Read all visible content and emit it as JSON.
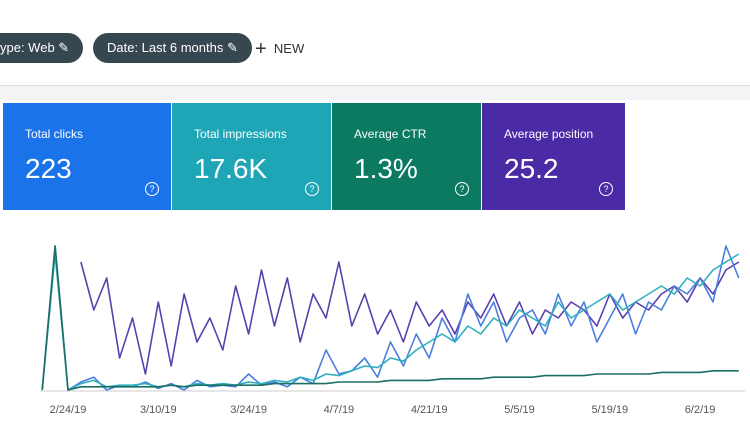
{
  "filters": [
    {
      "label": "ype: Web"
    },
    {
      "label": "Date: Last 6 months"
    }
  ],
  "new_button": "NEW",
  "metrics": [
    {
      "label": "Total clicks",
      "value": "223",
      "color": "#1a73e8"
    },
    {
      "label": "Total impressions",
      "value": "17.6K",
      "color": "#1fa6b6"
    },
    {
      "label": "Average CTR",
      "value": "1.3%",
      "color": "#0b7a60"
    },
    {
      "label": "Average position",
      "value": "25.2",
      "color": "#4a2aa5"
    }
  ],
  "chart_data": {
    "type": "line",
    "categories": [
      null,
      null,
      "2/24/19",
      null,
      null,
      null,
      null,
      null,
      null,
      "3/10/19",
      null,
      null,
      null,
      null,
      null,
      null,
      "3/24/19",
      null,
      null,
      null,
      null,
      null,
      null,
      "4/7/19",
      null,
      null,
      null,
      null,
      null,
      null,
      "4/21/19",
      null,
      null,
      null,
      null,
      null,
      null,
      "5/5/19",
      null,
      null,
      null,
      null,
      null,
      null,
      "5/19/19",
      null,
      null,
      null,
      null,
      null,
      null,
      "6/2/19",
      null,
      null,
      null
    ],
    "ylim": [
      0,
      100
    ],
    "series": [
      {
        "color": "#5b3fb0",
        "values": [
          null,
          null,
          null,
          80,
          50,
          70,
          20,
          45,
          10,
          55,
          15,
          60,
          30,
          45,
          25,
          65,
          35,
          75,
          40,
          70,
          30,
          60,
          45,
          80,
          40,
          60,
          35,
          50,
          30,
          55,
          40,
          50,
          35,
          55,
          45,
          60,
          40,
          55,
          35,
          50,
          45,
          55,
          50,
          40,
          60,
          45,
          55,
          50,
          60,
          65,
          55,
          70,
          60,
          75,
          80
        ]
      },
      {
        "color": "#4a7fe0",
        "values": [
          0,
          90,
          0,
          5,
          8,
          0,
          3,
          2,
          5,
          1,
          4,
          0,
          6,
          2,
          3,
          2,
          10,
          3,
          5,
          2,
          8,
          4,
          25,
          10,
          12,
          20,
          8,
          30,
          15,
          35,
          20,
          45,
          30,
          60,
          40,
          55,
          30,
          45,
          50,
          35,
          60,
          40,
          55,
          30,
          45,
          60,
          35,
          55,
          50,
          65,
          60,
          70,
          55,
          90,
          70
        ]
      },
      {
        "color": "#2fb0bf",
        "values": [
          0,
          85,
          0,
          4,
          6,
          2,
          3,
          3,
          4,
          2,
          3,
          2,
          4,
          3,
          4,
          3,
          5,
          4,
          6,
          5,
          8,
          6,
          10,
          9,
          12,
          15,
          14,
          20,
          18,
          25,
          30,
          35,
          30,
          40,
          35,
          45,
          40,
          50,
          45,
          40,
          55,
          45,
          50,
          55,
          60,
          50,
          55,
          60,
          65,
          60,
          70,
          65,
          75,
          80,
          85
        ]
      },
      {
        "color": "#1b6f63",
        "values": [
          0,
          90,
          0,
          2,
          2,
          2,
          2,
          2,
          2,
          2,
          3,
          2,
          3,
          3,
          3,
          3,
          3,
          3,
          4,
          4,
          4,
          4,
          4,
          5,
          5,
          5,
          5,
          6,
          6,
          6,
          6,
          7,
          7,
          7,
          7,
          8,
          8,
          8,
          8,
          9,
          9,
          9,
          9,
          10,
          10,
          10,
          10,
          10,
          11,
          11,
          11,
          11,
          12,
          12,
          12
        ]
      }
    ]
  }
}
